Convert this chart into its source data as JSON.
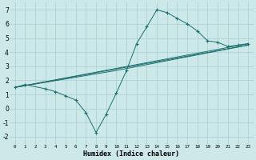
{
  "xlabel": "Humidex (Indice chaleur)",
  "xlim": [
    -0.5,
    23.5
  ],
  "ylim": [
    -2.5,
    7.5
  ],
  "xticks": [
    0,
    1,
    2,
    3,
    4,
    5,
    6,
    7,
    8,
    9,
    10,
    11,
    12,
    13,
    14,
    15,
    16,
    17,
    18,
    19,
    20,
    21,
    22,
    23
  ],
  "yticks": [
    -2,
    -1,
    0,
    1,
    2,
    3,
    4,
    5,
    6,
    7
  ],
  "background_color": "#cde8e8",
  "grid_color": "#aacece",
  "line_color": "#1a6e6e",
  "series": [
    {
      "x": [
        0,
        1,
        3,
        4,
        5,
        6,
        7,
        8,
        9,
        10,
        11,
        12,
        13,
        14,
        15,
        16,
        17,
        18,
        19,
        20,
        21,
        22,
        23
      ],
      "y": [
        1.5,
        1.7,
        1.4,
        1.2,
        0.9,
        0.6,
        -0.3,
        -1.7,
        -0.4,
        1.1,
        2.7,
        4.6,
        5.8,
        7.0,
        6.8,
        6.4,
        6.0,
        5.5,
        4.8,
        4.7,
        4.4,
        4.5,
        4.6
      ],
      "marker": true
    },
    {
      "x": [
        0,
        23
      ],
      "y": [
        1.5,
        4.6
      ],
      "marker": false
    },
    {
      "x": [
        0,
        10,
        23
      ],
      "y": [
        1.5,
        2.7,
        4.5
      ],
      "marker": false
    },
    {
      "x": [
        0,
        23
      ],
      "y": [
        1.5,
        4.5
      ],
      "marker": false
    }
  ]
}
